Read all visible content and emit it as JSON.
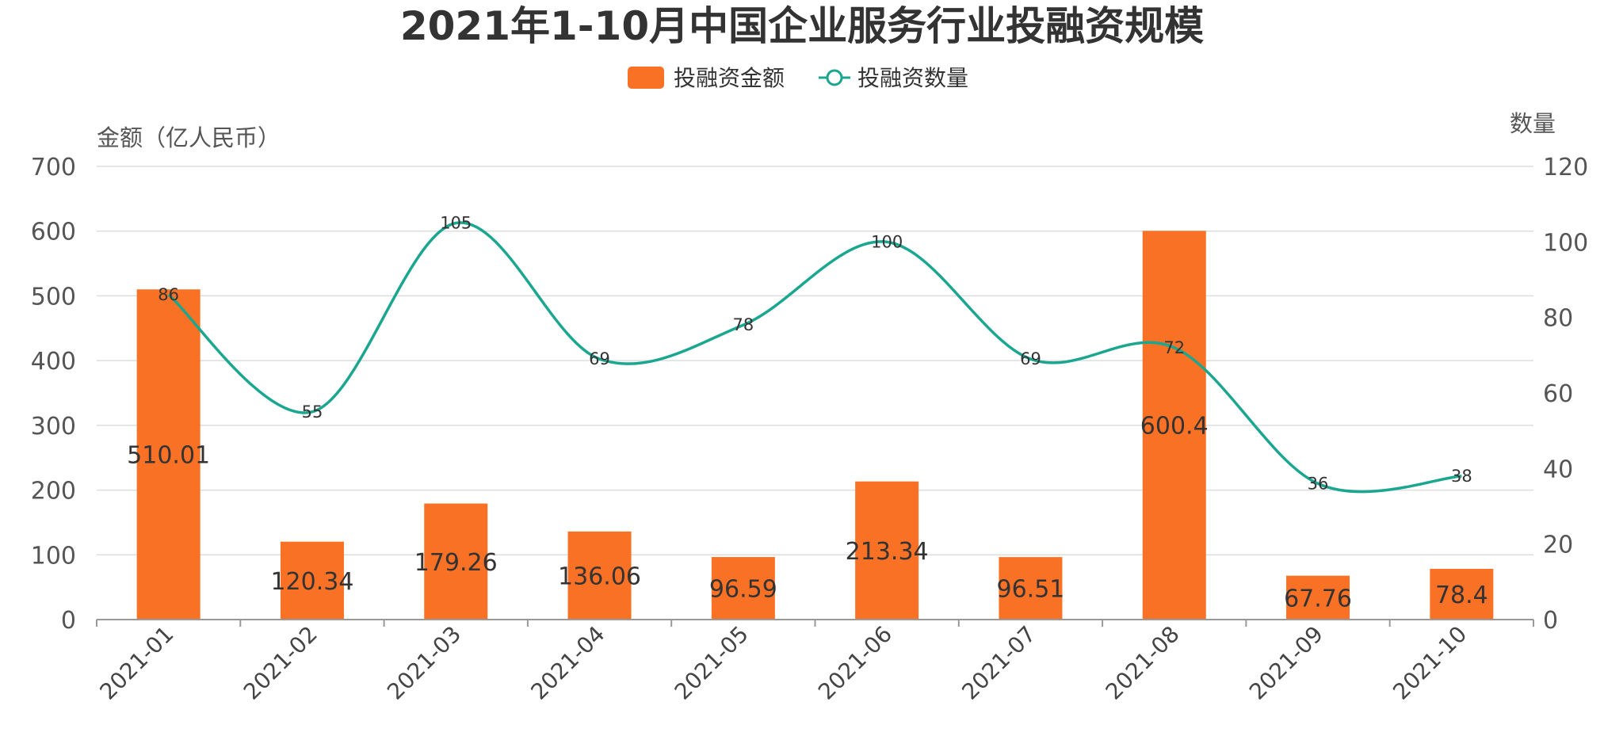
{
  "chart_data": {
    "type": "bar",
    "title": "2021年1-10月中国企业服务行业投融资规模",
    "categories": [
      "2021-01",
      "2021-02",
      "2021-03",
      "2021-04",
      "2021-05",
      "2021-06",
      "2021-07",
      "2021-08",
      "2021-09",
      "2021-10"
    ],
    "series": [
      {
        "name": "投融资金额",
        "type": "bar",
        "axis": "left",
        "color": "#F97125",
        "values": [
          510.01,
          120.34,
          179.26,
          136.06,
          96.59,
          213.34,
          96.51,
          600.4,
          67.76,
          78.4
        ]
      },
      {
        "name": "投融资数量",
        "type": "line",
        "smooth": true,
        "axis": "right",
        "color": "#1BA690",
        "values": [
          86,
          55,
          105,
          69,
          78,
          100,
          69,
          72,
          36,
          38
        ]
      }
    ],
    "y_left": {
      "label": "金额（亿人民币）",
      "ylim": [
        0,
        700
      ],
      "ticks": [
        0,
        100,
        200,
        300,
        400,
        500,
        600,
        700
      ]
    },
    "y_right": {
      "label": "数量",
      "ylim": [
        0,
        120
      ],
      "ticks": [
        0,
        20,
        40,
        60,
        80,
        100,
        120
      ]
    },
    "xlabel": "",
    "grid": true,
    "legend": "top-center"
  }
}
